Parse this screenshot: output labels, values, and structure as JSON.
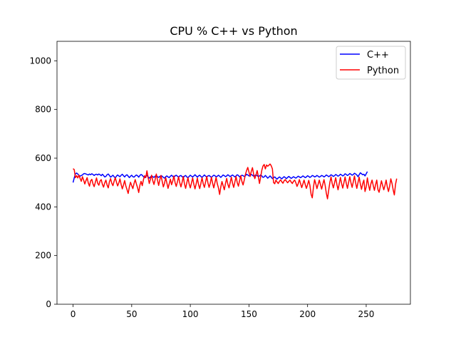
{
  "chart_data": {
    "type": "line",
    "title": "CPU % C++ vs Python",
    "xlabel": "",
    "ylabel": "",
    "xlim": [
      -13.7,
      287.7
    ],
    "ylim": [
      0,
      1080
    ],
    "xticks": [
      0,
      50,
      100,
      150,
      200,
      250
    ],
    "yticks": [
      0,
      200,
      400,
      600,
      800,
      1000
    ],
    "grid": false,
    "legend_position": "top-right",
    "series": [
      {
        "name": "C++",
        "color": "#0000ff",
        "x_start": 0,
        "x_step": 1,
        "values": [
          500,
          519,
          535,
          539,
          535,
          530,
          526,
          529,
          531,
          536,
          537,
          535,
          533,
          531,
          535,
          532,
          536,
          533,
          529,
          533,
          534,
          531,
          535,
          532,
          528,
          534,
          529,
          523,
          525,
          532,
          535,
          529,
          522,
          526,
          530,
          524,
          519,
          526,
          531,
          527,
          524,
          530,
          534,
          528,
          523,
          529,
          532,
          526,
          520,
          526,
          530,
          524,
          522,
          527,
          531,
          528,
          522,
          529,
          533,
          530,
          524,
          520,
          526,
          529,
          523,
          518,
          523,
          527,
          524,
          521,
          526,
          529,
          524,
          521,
          525,
          528,
          526,
          521,
          518,
          524,
          527,
          523,
          520,
          526,
          530,
          525,
          522,
          527,
          530,
          526,
          522,
          527,
          529,
          524,
          520,
          526,
          529,
          523,
          520,
          525,
          530,
          526,
          523,
          527,
          532,
          527,
          522,
          527,
          530,
          525,
          521,
          526,
          531,
          526,
          523,
          527,
          529,
          525,
          521,
          526,
          530,
          528,
          523,
          526,
          530,
          526,
          521,
          526,
          531,
          528,
          524,
          527,
          532,
          528,
          524,
          528,
          531,
          527,
          523,
          527,
          532,
          529,
          523,
          526,
          530,
          528,
          525,
          528,
          534,
          531,
          527,
          529,
          533,
          530,
          526,
          528,
          532,
          528,
          524,
          527,
          531,
          527,
          521,
          523,
          529,
          524,
          518,
          522,
          527,
          522,
          516,
          520,
          523,
          518,
          514,
          519,
          523,
          519,
          515,
          520,
          524,
          520,
          516,
          521,
          525,
          521,
          517,
          520,
          524,
          521,
          518,
          522,
          526,
          523,
          520,
          523,
          527,
          524,
          520,
          523,
          528,
          525,
          521,
          524,
          529,
          527,
          523,
          525,
          529,
          526,
          522,
          525,
          529,
          527,
          523,
          526,
          531,
          528,
          524,
          527,
          532,
          529,
          525,
          528,
          533,
          530,
          526,
          529,
          534,
          531,
          527,
          530,
          536,
          533,
          529,
          532,
          537,
          534,
          530,
          533,
          538,
          535,
          531,
          524,
          532,
          540,
          536,
          532,
          534,
          527,
          536,
          545
        ]
      },
      {
        "name": "Python",
        "color": "#ff0000",
        "x_start": 0,
        "x_step": 1,
        "values": [
          557,
          553,
          520,
          528,
          519,
          530,
          517,
          505,
          524,
          510,
          494,
          508,
          520,
          498,
          485,
          507,
          513,
          494,
          483,
          501,
          519,
          497,
          489,
          506,
          512,
          493,
          481,
          498,
          510,
          490,
          478,
          503,
          516,
          497,
          487,
          505,
          520,
          502,
          486,
          498,
          515,
          492,
          474,
          490,
          508,
          486,
          471,
          455,
          482,
          501,
          487,
          475,
          496,
          512,
          494,
          479,
          459,
          489,
          505,
          487,
          511,
          528,
          520,
          548,
          521,
          496,
          514,
          530,
          507,
          492,
          512,
          535,
          510,
          488,
          511,
          529,
          505,
          482,
          497,
          520,
          498,
          476,
          495,
          514,
          491,
          506,
          527,
          500,
          484,
          503,
          524,
          499,
          482,
          501,
          525,
          495,
          476,
          499,
          520,
          494,
          478,
          498,
          519,
          493,
          474,
          495,
          518,
          492,
          475,
          496,
          520,
          495,
          480,
          502,
          525,
          499,
          480,
          497,
          522,
          497,
          478,
          500,
          521,
          495,
          478,
          451,
          482,
          504,
          487,
          470,
          496,
          517,
          493,
          478,
          500,
          522,
          497,
          480,
          502,
          525,
          500,
          485,
          507,
          528,
          504,
          490,
          510,
          534,
          549,
          562,
          543,
          525,
          546,
          561,
          534,
          516,
          531,
          549,
          525,
          496,
          523,
          551,
          568,
          574,
          556,
          572,
          567,
          571,
          576,
          569,
          556,
          500,
          495,
          510,
          502,
          496,
          505,
          511,
          503,
          497,
          507,
          512,
          505,
          499,
          505,
          510,
          502,
          496,
          505,
          510,
          499,
          484,
          495,
          512,
          496,
          479,
          494,
          510,
          492,
          476,
          491,
          509,
          488,
          452,
          437,
          480,
          512,
          495,
          475,
          493,
          510,
          491,
          473,
          493,
          512,
          488,
          456,
          433,
          468,
          500,
          523,
          496,
          478,
          499,
          520,
          492,
          470,
          495,
          521,
          496,
          477,
          499,
          523,
          497,
          476,
          501,
          524,
          499,
          480,
          503,
          527,
          498,
          476,
          500,
          522,
          494,
          472,
          495,
          510,
          463,
          482,
          519,
          490,
          468,
          495,
          510,
          488,
          468,
          491,
          510,
          471,
          460,
          483,
          507,
          488,
          470,
          488,
          510,
          482,
          463,
          485,
          515,
          497,
          470,
          449,
          492,
          516
        ]
      }
    ]
  }
}
